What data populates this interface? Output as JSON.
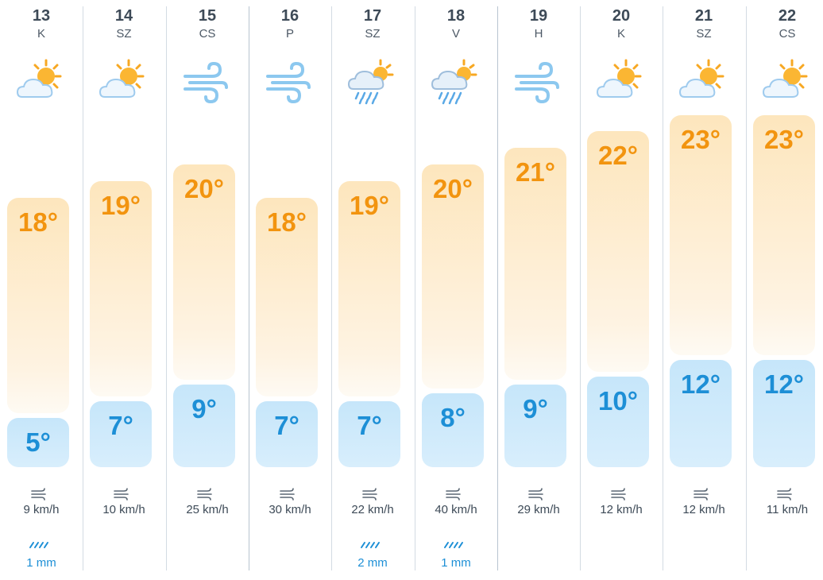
{
  "scale": {
    "min_temp": 5,
    "max_temp": 23
  },
  "days": [
    {
      "date": "13",
      "weekday": "K",
      "icon": "partly-sunny-icon",
      "high": "18°",
      "high_value": 18,
      "low": "5°",
      "low_value": 5,
      "wind": "9 km/h",
      "rain": "1 mm"
    },
    {
      "date": "14",
      "weekday": "SZ",
      "icon": "partly-sunny-icon",
      "high": "19°",
      "high_value": 19,
      "low": "7°",
      "low_value": 7,
      "wind": "10 km/h",
      "rain": ""
    },
    {
      "date": "15",
      "weekday": "CS",
      "icon": "wind-icon",
      "high": "20°",
      "high_value": 20,
      "low": "9°",
      "low_value": 9,
      "wind": "25 km/h",
      "rain": ""
    },
    {
      "date": "16",
      "weekday": "P",
      "icon": "wind-icon",
      "high": "18°",
      "high_value": 18,
      "low": "7°",
      "low_value": 7,
      "wind": "30 km/h",
      "rain": ""
    },
    {
      "date": "17",
      "weekday": "SZ",
      "icon": "sun-rain-icon",
      "high": "19°",
      "high_value": 19,
      "low": "7°",
      "low_value": 7,
      "wind": "22 km/h",
      "rain": "2 mm"
    },
    {
      "date": "18",
      "weekday": "V",
      "icon": "sun-rain-icon",
      "high": "20°",
      "high_value": 20,
      "low": "8°",
      "low_value": 8,
      "wind": "40 km/h",
      "rain": "1 mm"
    },
    {
      "date": "19",
      "weekday": "H",
      "icon": "wind-icon",
      "high": "21°",
      "high_value": 21,
      "low": "9°",
      "low_value": 9,
      "wind": "29 km/h",
      "rain": ""
    },
    {
      "date": "20",
      "weekday": "K",
      "icon": "partly-sunny-icon",
      "high": "22°",
      "high_value": 22,
      "low": "10°",
      "low_value": 10,
      "wind": "12 km/h",
      "rain": ""
    },
    {
      "date": "21",
      "weekday": "SZ",
      "icon": "partly-sunny-icon",
      "high": "23°",
      "high_value": 23,
      "low": "12°",
      "low_value": 12,
      "wind": "12 km/h",
      "rain": ""
    },
    {
      "date": "22",
      "weekday": "CS",
      "icon": "partly-sunny-icon",
      "high": "23°",
      "high_value": 23,
      "low": "12°",
      "low_value": 12,
      "wind": "11 km/h",
      "rain": ""
    }
  ],
  "colors": {
    "high_text": "#f2940f",
    "low_text": "#1d8fd6",
    "rain_text": "#1d8fd6",
    "high_bar": "#fde6bd",
    "low_bar": "#c6e6fa"
  }
}
